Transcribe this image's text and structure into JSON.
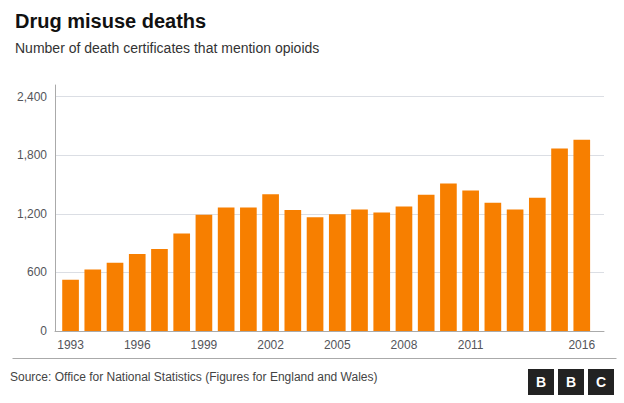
{
  "chart_data": {
    "type": "bar",
    "title": "Drug misuse deaths",
    "subtitle": "Number of death certificates that mention opioids",
    "source": "Source: Office for National Statistics (Figures for England and Wales)",
    "logo": "BBC",
    "x": [
      1993,
      1994,
      1995,
      1996,
      1997,
      1998,
      1999,
      2000,
      2001,
      2002,
      2003,
      2004,
      2005,
      2006,
      2007,
      2008,
      2009,
      2010,
      2011,
      2012,
      2013,
      2014,
      2015,
      2016
    ],
    "values": [
      525,
      630,
      700,
      790,
      840,
      1000,
      1190,
      1265,
      1265,
      1400,
      1240,
      1165,
      1195,
      1245,
      1215,
      1275,
      1395,
      1510,
      1440,
      1315,
      1245,
      1365,
      1870,
      1960
    ],
    "color": "#f77f00",
    "xlim": [
      1992.3,
      2017.0
    ],
    "xticks": [
      1993,
      1996,
      1999,
      2002,
      2005,
      2008,
      2011,
      2016
    ],
    "ylim": [
      0,
      2520
    ],
    "yticks": [
      0,
      600,
      {
        "value": 1200,
        "label": "1,200"
      },
      {
        "value": 1800,
        "label": "1,800"
      },
      {
        "value": 2400,
        "label": "2,400"
      }
    ],
    "grid": true
  }
}
